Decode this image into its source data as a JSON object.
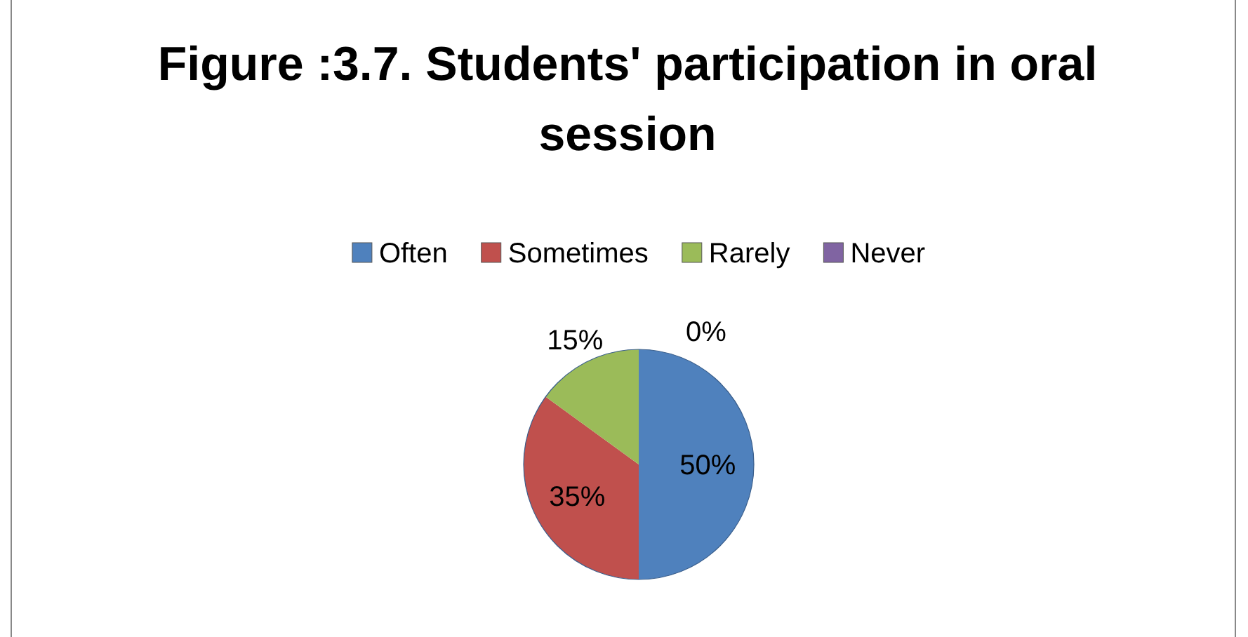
{
  "chart_data": {
    "type": "pie",
    "title": "Figure :3.7. Students' participation in oral session",
    "categories": [
      "Often",
      "Sometimes",
      "Rarely",
      "Never"
    ],
    "values": [
      50,
      35,
      15,
      0
    ],
    "colors": [
      "#4f81bd",
      "#c0504d",
      "#9bbb59",
      "#8064a2"
    ],
    "value_labels": [
      "50%",
      "35%",
      "15%",
      "0%"
    ],
    "legend": "top"
  }
}
